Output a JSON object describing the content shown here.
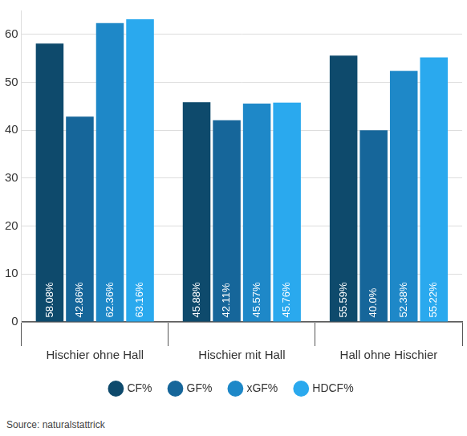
{
  "chart_data": {
    "type": "bar",
    "categories": [
      "Hischier ohne Hall",
      "Hischier mit Hall",
      "Hall ohne Hischier"
    ],
    "series": [
      {
        "name": "CF%",
        "color": "#0e4a6c",
        "values": [
          58.08,
          45.88,
          55.59
        ],
        "value_labels": [
          "58.08%",
          "45.88%",
          "55.59%"
        ]
      },
      {
        "name": "GF%",
        "color": "#16669a",
        "values": [
          42.86,
          42.11,
          40.0
        ],
        "value_labels": [
          "42.86%",
          "42.11%",
          "40.0%"
        ]
      },
      {
        "name": "xGF%",
        "color": "#1e88c8",
        "values": [
          62.36,
          45.57,
          52.38
        ],
        "value_labels": [
          "62.36%",
          "45.57%",
          "52.38%"
        ]
      },
      {
        "name": "HDCF%",
        "color": "#2aa9ee",
        "values": [
          63.16,
          45.76,
          55.22
        ],
        "value_labels": [
          "63.16%",
          "45.76%",
          "55.22%"
        ]
      }
    ],
    "ylim": [
      0,
      65
    ],
    "yticks": [
      0,
      10,
      20,
      30,
      40,
      50,
      60
    ],
    "grid": true,
    "legend": "bottom",
    "data_labels": true,
    "source": "Source: naturalstattrick"
  }
}
